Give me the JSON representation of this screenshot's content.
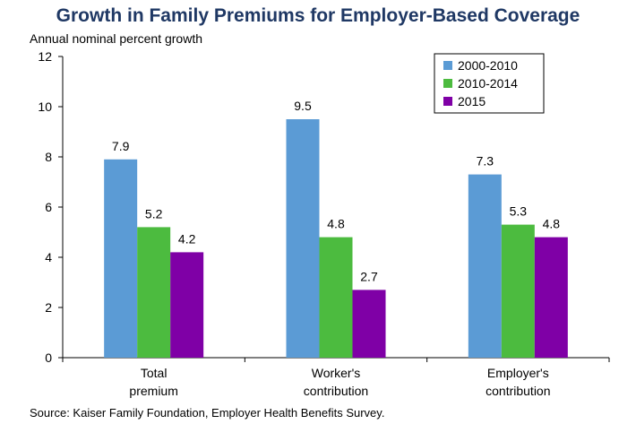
{
  "chart_data": {
    "type": "bar",
    "title": "Growth in Family Premiums for Employer-Based Coverage",
    "ylabel": "Annual nominal percent growth",
    "xlabel": "",
    "ylim": [
      0,
      12
    ],
    "yticks": [
      0,
      2,
      4,
      6,
      8,
      10,
      12
    ],
    "categories": [
      [
        "Total",
        "premium"
      ],
      [
        "Worker's",
        "contribution"
      ],
      [
        "Employer's",
        "contribution"
      ]
    ],
    "series": [
      {
        "name": "2000-2010",
        "color": "#5b9bd5",
        "values": [
          7.9,
          9.5,
          7.3
        ]
      },
      {
        "name": "2010-2014",
        "color": "#4cbb3f",
        "values": [
          5.2,
          4.8,
          5.3
        ]
      },
      {
        "name": "2015",
        "color": "#7f00a6",
        "values": [
          4.2,
          2.7,
          4.8
        ]
      }
    ],
    "data_labels": [
      [
        "7.9",
        "9.5",
        "7.3"
      ],
      [
        "5.2",
        "4.8",
        "5.3"
      ],
      [
        "4.2",
        "2.7",
        "4.8"
      ]
    ],
    "legend_position": "top-right",
    "grid": false,
    "source": "Source: Kaiser Family Foundation, Employer Health Benefits Survey."
  }
}
